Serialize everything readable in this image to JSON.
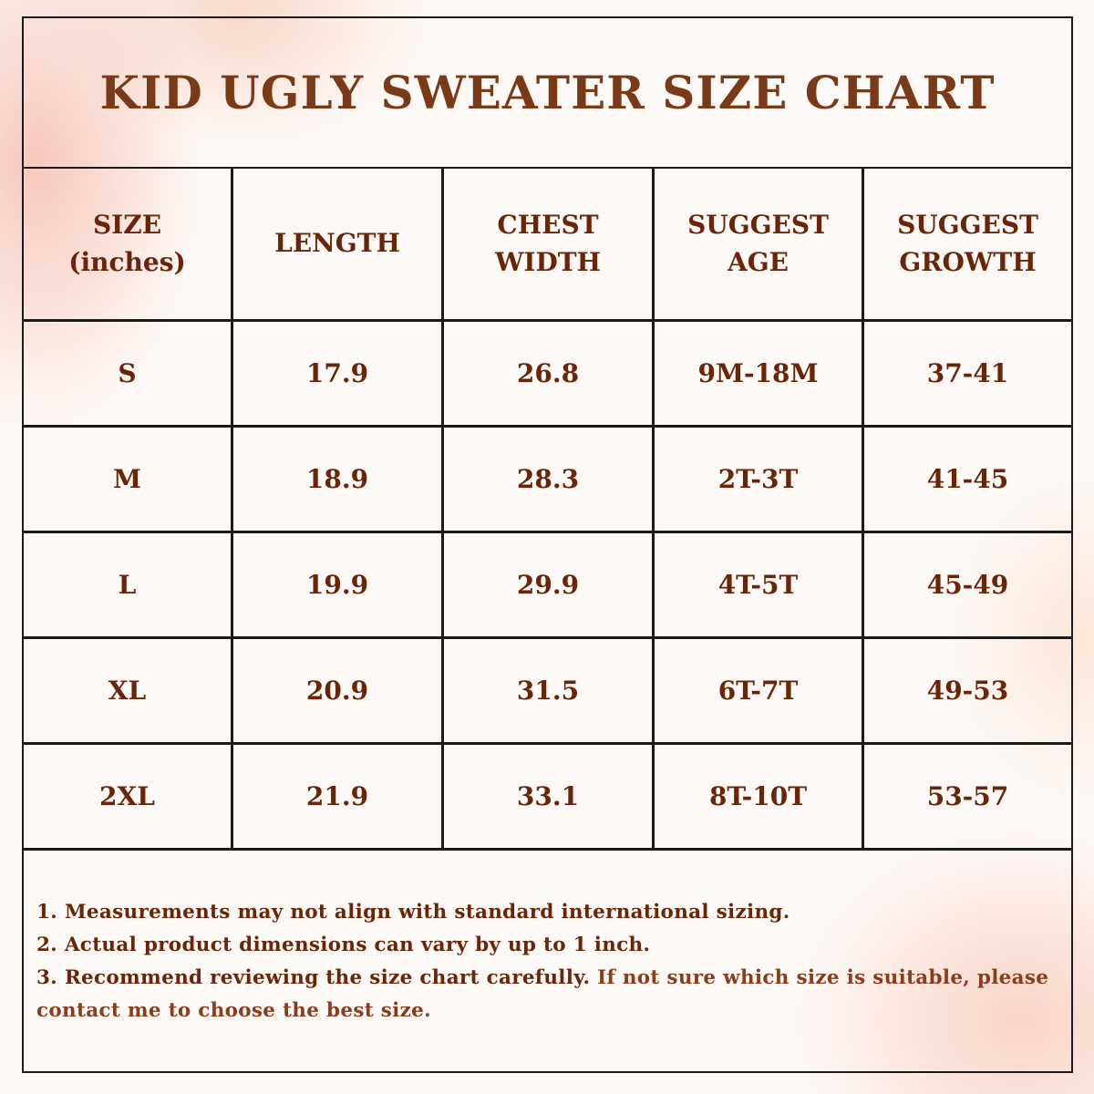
{
  "title": "KID UGLY SWEATER SIZE CHART",
  "table": {
    "header": [
      "SIZE (inches)",
      "LENGTH",
      "CHEST WIDTH",
      "SUGGEST AGE",
      "SUGGEST GROWTH"
    ],
    "rows": [
      [
        "S",
        "17.9",
        "26.8",
        "9M-18M",
        "37-41"
      ],
      [
        "M",
        "18.9",
        "28.3",
        "2T-3T",
        "41-45"
      ],
      [
        "L",
        "19.9",
        "29.9",
        "4T-5T",
        "45-49"
      ],
      [
        "XL",
        "20.9",
        "31.5",
        "6T-7T",
        "49-53"
      ],
      [
        "2XL",
        "21.9",
        "33.1",
        "8T-10T",
        "53-57"
      ]
    ]
  },
  "notes": [
    "1. Measurements may not align with standard international sizing.",
    "2. Actual product dimensions can vary by up to 1 inch.",
    "3. Recommend reviewing the size chart carefully.",
    "If not sure which size is suitable, please contact me to choose the best size."
  ]
}
